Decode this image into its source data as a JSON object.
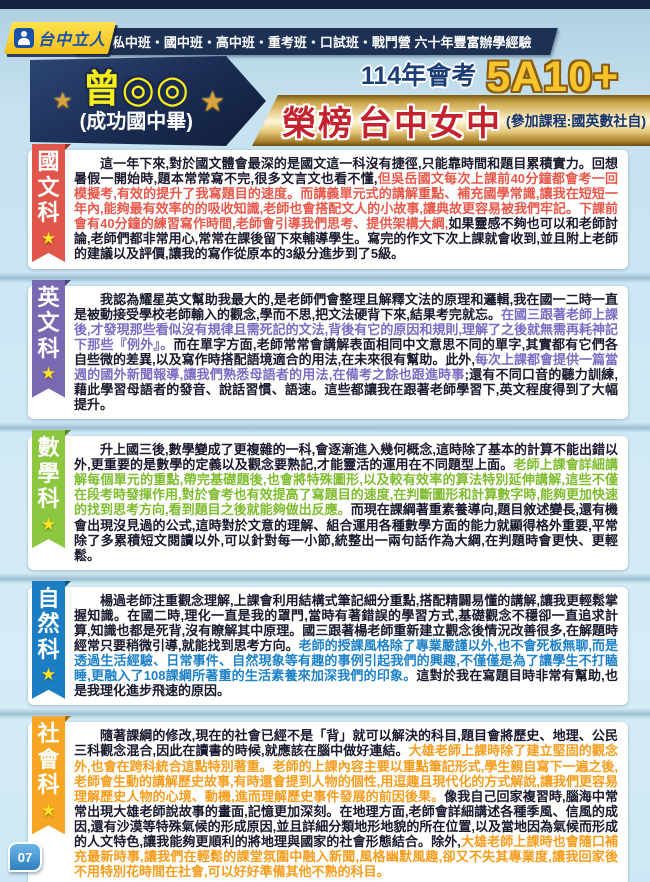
{
  "page": {
    "number": "07"
  },
  "icons": {
    "star": "★"
  },
  "header": {
    "logo_text": "台中立人",
    "programs": "私中班・國中班・高中班・重考班・口試班・戰鬥營 六十年豐富辦學經驗"
  },
  "banner": {
    "student_name": "曾◎◎",
    "student_school": "(成功國中畢)",
    "exam_title": "114年會考",
    "exam_score": "5A10+",
    "honor_prefix": "榮榜",
    "honor_school": "台中女中",
    "courses": "(參加課程:國英數社自)"
  },
  "colors": {
    "navy": "#1b2b4e",
    "gold": "#f6c52e",
    "banner_red": "#c2232e",
    "chinese_accent": "#e0564a",
    "english_accent": "#7a68b2",
    "math_accent": "#8dc63f",
    "science_accent": "#1b7ec2",
    "social_accent": "#f6a623"
  },
  "sections": [
    {
      "subject": "chinese",
      "label": "國文科",
      "runs": [
        {
          "t": "這一年下來,對於國文體會最深的是國文這一科沒有捷徑,只能靠時間和題目累積實力。回想暑假一開始時,題本常常寫不完,很多文言文也看不懂,",
          "hl": false
        },
        {
          "t": "但吳岳國文每次上課前40分鐘都會考一回模擬考,有效的提升了我寫題目的速度。而講義單元式的講解重點、補充國學常識,讓我在短短一年內,能夠最有效率的的吸收知識,老師也會搭配文人的小故事,讓典故更容易被我們牢記。下課前會有40分鐘的練習寫作時間,老師會引導我們思考、提供架構大綱,",
          "hl": true
        },
        {
          "t": "如果靈感不夠也可以和老師討論,老師們都非常用心,常常在課後留下來輔導學生。寫完的作文下次上課就會收到,並且附上老師的建議以及評價,讓我的寫作從原本的3級分進步到了5級。",
          "hl": false
        }
      ]
    },
    {
      "subject": "english",
      "label": "英文科",
      "runs": [
        {
          "t": "我認為耀星英文幫助我最大的,是老師們會整理且解釋文法的原理和邏輯,我在國一二時一直是被動接受學校老師輸入的觀念,學而不思,把文法硬背下來,結果考完就忘。",
          "hl": false
        },
        {
          "t": "在國三跟著老師上課後,才發現那些看似沒有規律且需死記的文法,背後有它的原因和規則,理解了之後就無需再耗神記下那些『例外』。",
          "hl": true
        },
        {
          "t": "而在單字方面,老師常常會講解表面相同中文意思不同的單字,其實都有它們各自些微的差異,以及寫作時搭配語境適合的用法,在未來很有幫助。此外,",
          "hl": false
        },
        {
          "t": "每次上課都會提供一篇當週的國外新聞報導,讓我們熟悉母語者的用法,在備考之餘也跟進時事",
          "hl": true
        },
        {
          "t": ";還有不同口音的聽力訓練,藉此學習母語者的發音、說話習慣、語速。這些都讓我在跟著老師學習下,英文程度得到了大幅提升。",
          "hl": false
        }
      ]
    },
    {
      "subject": "math",
      "label": "數學科",
      "runs": [
        {
          "t": "升上國三後,數學變成了更複雜的一科,會逐漸進入幾何概念,這時除了基本的計算不能出錯以外,更重要的是數學的定義以及觀念要熟記,才能靈活的運用在不同題型上面。",
          "hl": false
        },
        {
          "t": "老師上課會詳細講解每個單元的重點,帶完基礎題後,也會將特殊圖形,以及較有效率的算法特別延伸講解,這些不僅在段考時發揮作用,對於會考也有效提高了寫題目的速度,在判斷圖形和計算數字時,能夠更加快速的找到思考方向,看到題目之後就能夠做出反應。",
          "hl": true
        },
        {
          "t": "而現在課綱著重素養導向,題目敘述變長,還有機會出現沒見過的公式,這時對於文意的理解、組合運用各種數學方面的能力就顯得格外重要,平常除了多累積短文閱讀以外,可以針對每一小節,統整出一兩句話作為大綱,在判題時會更快、更輕鬆。",
          "hl": false
        }
      ]
    },
    {
      "subject": "science",
      "label": "自然科",
      "runs": [
        {
          "t": "楊過老師注重觀念理解,上課會利用結構式筆記細分重點,搭配精闢易懂的講解,讓我更輕鬆掌握知識。在國二時,理化一直是我的罩門,當時有著錯誤的學習方式,基礎觀念不穩卻一直追求計算,知識也都是死背,沒有瞭解其中原理。國三跟著楊老師重新建立觀念後情況改善很多,在解題時經常只要稍微引導,就能找到思考方向。",
          "hl": false
        },
        {
          "t": "老師的授課風格除了專業嚴謹以外,也不會死板無聊,而是透過生活經驗、日常事件、自然現象等有趣的事例引起我們的興趣,不僅僅是為了讓學生不打瞌睡,更融入了108課綱所著重的生活素養來加深我們的印象。",
          "hl": true
        },
        {
          "t": "這對於我在寫題目時非常有幫助,也是我理化進步飛速的原因。",
          "hl": false
        }
      ]
    },
    {
      "subject": "social",
      "label": "社會科",
      "runs": [
        {
          "t": "隨著課綱的修改,現在的社會已經不是「背」就可以解決的科目,題目會將歷史、地理、公民三科觀念混合,因此在讀書的時候,就應該在腦中做好連結。",
          "hl": false
        },
        {
          "t": "大雄老師上課時除了建立堅固的觀念外,也會在跨科統合這點特別著重。老師的上課內容主要以重點筆記形式,學生親自寫下一遍之後,老師會生動的講解歷史故事,有時還會提到人物的個性,用逗趣且現代化的方式解說,讓我們更容易理解歷史人物的心境、動機,進而理解歷史事件發展的前因後果。",
          "hl": true
        },
        {
          "t": "像我自己回家複習時,腦海中常常出現大雄老師說故事的畫面,記憶更加深刻。在地理方面,老師會詳細講述各種季風、信風的成因,還有沙漠等特殊氣候的形成原因,並且詳細分類地形地貌的所在位置,以及當地因為氣候而形成的人文特色,讓我能夠更順利的將地理與國家的社會形態結合。除外,",
          "hl": false
        },
        {
          "t": "大雄老師上課時也會隨口補充最新時事,讓我們在輕鬆的課堂氛圍中融入新聞,風格幽默風趣,卻又不失其專業度,讓我回家後不用特別花時間在社會,可以好好準備其他不熟的科目。",
          "hl": true
        }
      ]
    }
  ]
}
